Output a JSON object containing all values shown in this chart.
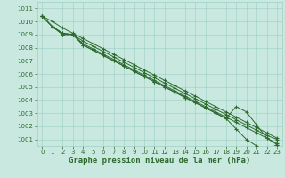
{
  "title": "Graphe pression niveau de la mer (hPa)",
  "x": [
    0,
    1,
    2,
    3,
    4,
    5,
    6,
    7,
    8,
    9,
    10,
    11,
    12,
    13,
    14,
    15,
    16,
    17,
    18,
    19,
    20,
    21,
    22,
    23
  ],
  "lines": [
    [
      1010.4,
      1010.0,
      1009.5,
      1009.1,
      1008.7,
      1008.3,
      1007.9,
      1007.5,
      1007.1,
      1006.7,
      1006.3,
      1005.9,
      1005.5,
      1005.1,
      1004.7,
      1004.3,
      1003.9,
      1003.5,
      1003.1,
      1002.7,
      1002.3,
      1001.9,
      1001.5,
      1001.1
    ],
    [
      1010.4,
      1009.6,
      1009.1,
      1009.0,
      1008.5,
      1008.1,
      1007.7,
      1007.3,
      1006.9,
      1006.5,
      1006.1,
      1005.7,
      1005.3,
      1004.9,
      1004.5,
      1004.1,
      1003.7,
      1003.3,
      1002.9,
      1002.5,
      1002.1,
      1001.7,
      1001.3,
      1001.0
    ],
    [
      1010.4,
      1009.6,
      1009.1,
      1009.0,
      1008.3,
      1007.9,
      1007.5,
      1007.1,
      1006.7,
      1006.3,
      1005.9,
      1005.5,
      1005.1,
      1004.7,
      1004.3,
      1003.9,
      1003.5,
      1003.1,
      1002.7,
      1002.3,
      1001.9,
      1001.5,
      1001.1,
      1000.7
    ],
    [
      1010.4,
      1009.6,
      1009.0,
      1009.0,
      1008.2,
      1007.8,
      1007.4,
      1007.0,
      1006.6,
      1006.2,
      1005.8,
      1005.4,
      1005.0,
      1004.6,
      1004.2,
      1003.8,
      1003.4,
      1003.0,
      1002.6,
      1001.8,
      1001.0,
      1000.5,
      1000.2,
      1000.6
    ],
    [
      1010.4,
      1009.6,
      1009.0,
      1009.0,
      1008.2,
      1007.8,
      1007.4,
      1007.0,
      1006.6,
      1006.2,
      1005.8,
      1005.4,
      1005.0,
      1004.6,
      1004.2,
      1003.8,
      1003.4,
      1003.0,
      1002.6,
      1003.5,
      1003.1,
      1002.1,
      1001.1,
      1000.6
    ]
  ],
  "line_color": "#2d6a2d",
  "bg_color": "#c8e8e0",
  "grid_color": "#9ecfc4",
  "ylim": [
    1000.5,
    1011.5
  ],
  "yticks": [
    1001,
    1002,
    1003,
    1004,
    1005,
    1006,
    1007,
    1008,
    1009,
    1010,
    1011
  ],
  "xlim": [
    -0.5,
    23.5
  ],
  "xticks": [
    0,
    1,
    2,
    3,
    4,
    5,
    6,
    7,
    8,
    9,
    10,
    11,
    12,
    13,
    14,
    15,
    16,
    17,
    18,
    19,
    20,
    21,
    22,
    23
  ],
  "linewidth": 0.7,
  "markersize": 3.0,
  "title_fontsize": 6.5,
  "tick_fontsize": 5.0
}
